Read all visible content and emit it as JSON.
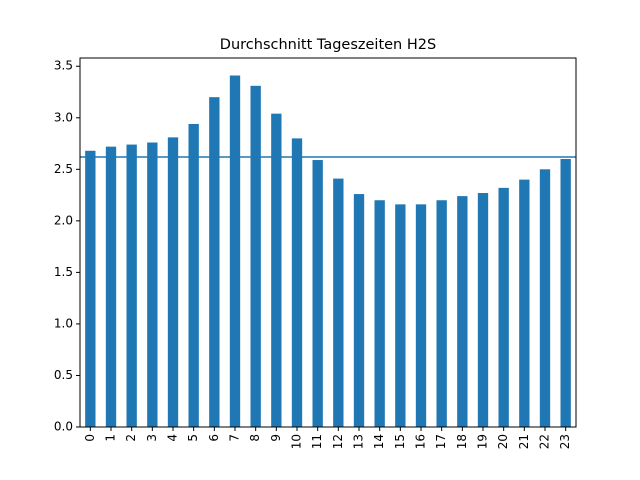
{
  "chart_data": {
    "type": "bar",
    "title": "Durchschnitt Tageszeiten H2S",
    "xlabel": "",
    "ylabel": "",
    "categories": [
      "0",
      "1",
      "2",
      "3",
      "4",
      "5",
      "6",
      "7",
      "8",
      "9",
      "10",
      "11",
      "12",
      "13",
      "14",
      "15",
      "16",
      "17",
      "18",
      "19",
      "20",
      "21",
      "22",
      "23"
    ],
    "values": [
      2.68,
      2.72,
      2.74,
      2.76,
      2.81,
      2.94,
      3.2,
      3.41,
      3.31,
      3.04,
      2.8,
      2.59,
      2.41,
      2.26,
      2.2,
      2.16,
      2.16,
      2.2,
      2.24,
      2.27,
      2.32,
      2.4,
      2.5,
      2.6
    ],
    "mean_line": 2.62,
    "ylim": [
      0,
      3.58
    ],
    "yticks": [
      "0.0",
      "0.5",
      "1.0",
      "1.5",
      "2.0",
      "2.5",
      "3.0",
      "3.5"
    ],
    "grid": false,
    "color": "#1f77b4"
  }
}
